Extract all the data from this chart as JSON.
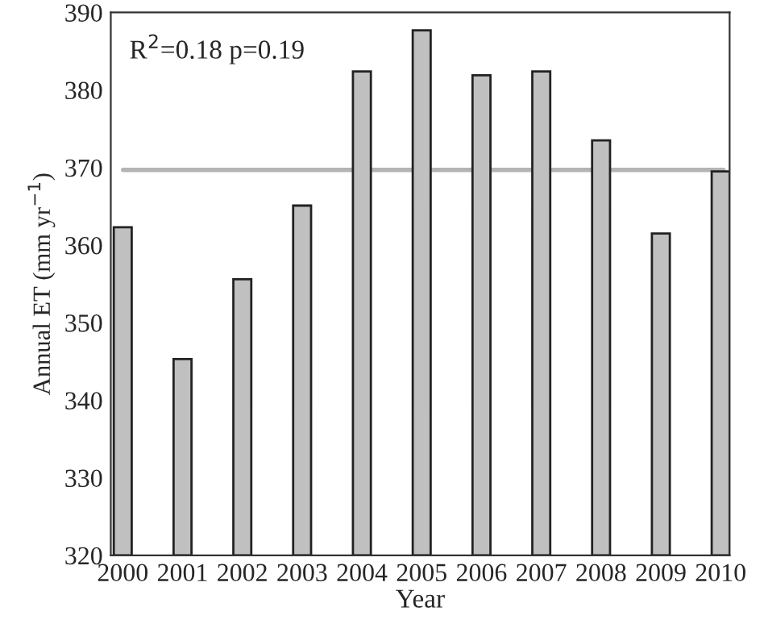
{
  "chart_data": {
    "type": "bar",
    "xlabel": "Year",
    "ylabel": "Annual ET (mm yr$^{−1}$)",
    "categories": [
      "2000",
      "2001",
      "2002",
      "2003",
      "2004",
      "2005",
      "2006",
      "2007",
      "2008",
      "2009",
      "2010"
    ],
    "values": [
      362.3,
      345.3,
      355.6,
      365.1,
      382.4,
      387.7,
      381.9,
      382.4,
      373.5,
      361.5,
      369.5
    ],
    "color": "#c0c0c0",
    "ylim": [
      320,
      390
    ],
    "yticks": [
      320,
      330,
      340,
      350,
      360,
      370,
      380,
      390
    ],
    "ref_lines": [
      {
        "axis": "y",
        "value": 369.7,
        "color": "#b4b4b4"
      }
    ],
    "annotations": [
      "R$^{2}$=0.18 p=0.19"
    ],
    "grid": false,
    "legend": false
  }
}
